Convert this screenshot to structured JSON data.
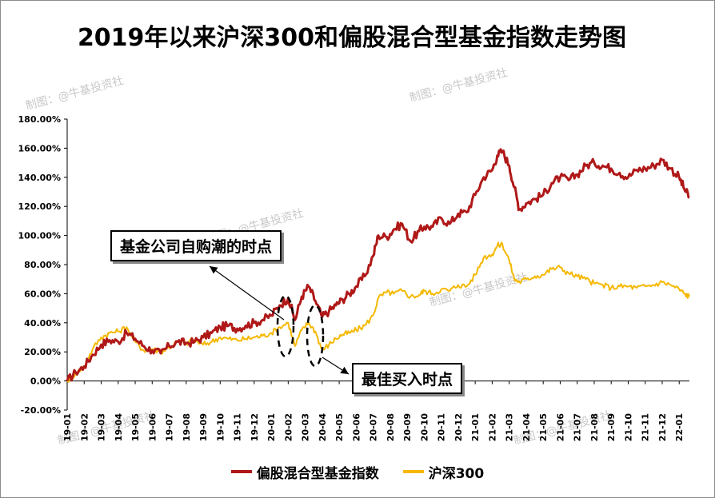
{
  "title": "2019年以来沪深300和偏股混合型基金指数走势图",
  "watermark": "制图：@牛基投资社",
  "annotations": {
    "callout_1": "基金公司自购潮的时点",
    "callout_2": "最佳买入时点"
  },
  "colors": {
    "fund_index": "#b01818",
    "csi300": "#f5b800",
    "axis": "#000000",
    "watermark": "#c8c8c8"
  },
  "chart_data": {
    "type": "line",
    "x": [
      "19-01",
      "19-02",
      "19-03",
      "19-04",
      "19-05",
      "19-06",
      "19-07",
      "19-08",
      "19-09",
      "19-10",
      "19-11",
      "19-12",
      "20-01",
      "20-02",
      "20-03",
      "20-04",
      "20-05",
      "20-06",
      "20-07",
      "20-08",
      "20-09",
      "20-10",
      "20-11",
      "20-12",
      "21-01",
      "21-02",
      "21-03",
      "21-04",
      "21-05",
      "21-06",
      "21-07",
      "21-08",
      "21-09",
      "21-10",
      "21-11",
      "21-12",
      "22-01"
    ],
    "y_tick_labels": [
      "-20.00%",
      "0.00%",
      "20.00%",
      "40.00%",
      "60.00%",
      "80.00%",
      "100.00%",
      "120.00%",
      "140.00%",
      "160.00%",
      "180.00%"
    ],
    "ylim": [
      -20,
      180
    ],
    "y_unit": "%",
    "grid": false,
    "legend_position": "bottom",
    "series": [
      {
        "name": "偏股混合型基金指数",
        "color": "#b01818",
        "values": [
          [
            0,
            0
          ],
          [
            0.5,
            6
          ],
          [
            1,
            10
          ],
          [
            1.5,
            18
          ],
          [
            2,
            25
          ],
          [
            2.5,
            28
          ],
          [
            3,
            27
          ],
          [
            3.5,
            33
          ],
          [
            4,
            29
          ],
          [
            4.5,
            24
          ],
          [
            5,
            21
          ],
          [
            5.5,
            19
          ],
          [
            6,
            24
          ],
          [
            6.5,
            27
          ],
          [
            7,
            26
          ],
          [
            7.5,
            27
          ],
          [
            8,
            30
          ],
          [
            8.5,
            33
          ],
          [
            9,
            37
          ],
          [
            9.5,
            38
          ],
          [
            10,
            36
          ],
          [
            10.5,
            38
          ],
          [
            11,
            40
          ],
          [
            11.5,
            42
          ],
          [
            12,
            45
          ],
          [
            12.5,
            52
          ],
          [
            13,
            57
          ],
          [
            13.4,
            42
          ],
          [
            13.8,
            58
          ],
          [
            14.2,
            65
          ],
          [
            14.6,
            55
          ],
          [
            15,
            44
          ],
          [
            15.4,
            48
          ],
          [
            15.8,
            52
          ],
          [
            16.2,
            56
          ],
          [
            16.6,
            60
          ],
          [
            17,
            65
          ],
          [
            17.5,
            72
          ],
          [
            18,
            86
          ],
          [
            18.3,
            100
          ],
          [
            18.8,
            99
          ],
          [
            19.2,
            104
          ],
          [
            19.7,
            108
          ],
          [
            20.2,
            96
          ],
          [
            20.7,
            103
          ],
          [
            21,
            106
          ],
          [
            21.5,
            106
          ],
          [
            22,
            112
          ],
          [
            22.5,
            108
          ],
          [
            23,
            115
          ],
          [
            23.5,
            116
          ],
          [
            24,
            128
          ],
          [
            24.5,
            140
          ],
          [
            25,
            145
          ],
          [
            25.3,
            155
          ],
          [
            25.6,
            158
          ],
          [
            26,
            148
          ],
          [
            26.3,
            133
          ],
          [
            26.6,
            118
          ],
          [
            27,
            122
          ],
          [
            27.5,
            125
          ],
          [
            28,
            128
          ],
          [
            28.5,
            136
          ],
          [
            29,
            140
          ],
          [
            29.5,
            138
          ],
          [
            30,
            142
          ],
          [
            30.5,
            148
          ],
          [
            31,
            150
          ],
          [
            31.5,
            148
          ],
          [
            32,
            146
          ],
          [
            32.5,
            143
          ],
          [
            33,
            140
          ],
          [
            33.5,
            145
          ],
          [
            34,
            146
          ],
          [
            34.5,
            148
          ],
          [
            35,
            152
          ],
          [
            35.5,
            146
          ],
          [
            36,
            140
          ],
          [
            36.3,
            132
          ],
          [
            36.6,
            126
          ]
        ]
      },
      {
        "name": "沪深300",
        "color": "#f5b800",
        "values": [
          [
            0,
            0
          ],
          [
            0.5,
            5
          ],
          [
            1,
            10
          ],
          [
            1.5,
            22
          ],
          [
            2,
            30
          ],
          [
            2.5,
            33
          ],
          [
            3,
            34
          ],
          [
            3.5,
            37
          ],
          [
            4,
            27
          ],
          [
            4.5,
            21
          ],
          [
            5,
            22
          ],
          [
            5.5,
            20
          ],
          [
            6,
            23
          ],
          [
            6.5,
            27
          ],
          [
            7,
            26
          ],
          [
            7.5,
            28
          ],
          [
            8,
            25
          ],
          [
            8.5,
            27
          ],
          [
            9,
            30
          ],
          [
            9.5,
            29
          ],
          [
            10,
            28
          ],
          [
            10.5,
            29
          ],
          [
            11,
            30
          ],
          [
            11.5,
            31
          ],
          [
            12,
            33
          ],
          [
            12.5,
            37
          ],
          [
            13,
            40
          ],
          [
            13.4,
            24
          ],
          [
            13.8,
            35
          ],
          [
            14.2,
            40
          ],
          [
            14.6,
            34
          ],
          [
            15,
            21
          ],
          [
            15.4,
            25
          ],
          [
            15.8,
            29
          ],
          [
            16.2,
            32
          ],
          [
            16.6,
            33
          ],
          [
            17,
            35
          ],
          [
            17.5,
            38
          ],
          [
            18,
            45
          ],
          [
            18.3,
            57
          ],
          [
            18.8,
            61
          ],
          [
            19.2,
            60
          ],
          [
            19.7,
            62
          ],
          [
            20.2,
            58
          ],
          [
            20.7,
            59
          ],
          [
            21,
            62
          ],
          [
            21.5,
            60
          ],
          [
            22,
            63
          ],
          [
            22.5,
            62
          ],
          [
            23,
            66
          ],
          [
            23.5,
            65
          ],
          [
            24,
            73
          ],
          [
            24.5,
            85
          ],
          [
            25,
            87
          ],
          [
            25.3,
            93
          ],
          [
            25.6,
            94
          ],
          [
            26,
            83
          ],
          [
            26.3,
            70
          ],
          [
            26.6,
            68
          ],
          [
            27,
            70
          ],
          [
            27.5,
            72
          ],
          [
            28,
            73
          ],
          [
            28.5,
            77
          ],
          [
            29,
            78
          ],
          [
            29.5,
            74
          ],
          [
            30,
            72
          ],
          [
            30.5,
            70
          ],
          [
            31,
            67
          ],
          [
            31.5,
            66
          ],
          [
            32,
            64
          ],
          [
            32.5,
            65
          ],
          [
            33,
            65
          ],
          [
            33.5,
            64
          ],
          [
            34,
            65
          ],
          [
            34.5,
            66
          ],
          [
            35,
            68
          ],
          [
            35.5,
            66
          ],
          [
            36,
            63
          ],
          [
            36.3,
            60
          ],
          [
            36.6,
            58
          ]
        ]
      }
    ]
  }
}
